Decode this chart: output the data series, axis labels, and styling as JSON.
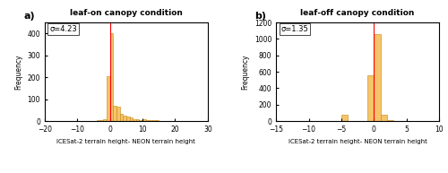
{
  "panel_a": {
    "title": "leaf-on canopy condition",
    "label": "a)",
    "sigma_text": "σ=4.23",
    "xlabel": "ICESat-2 terrain height- NEON terrain height",
    "ylabel": "Frequency",
    "xlim": [
      -20,
      30
    ],
    "ylim": [
      0,
      450
    ],
    "yticks": [
      0,
      100,
      200,
      300,
      400
    ],
    "xticks": [
      -20,
      -10,
      0,
      10,
      20,
      30
    ],
    "vline": 0,
    "bar_color": "#F5C46B",
    "bar_edge_color": "#C8860A",
    "bin_left": [
      -20,
      -19,
      -18,
      -17,
      -16,
      -15,
      -14,
      -13,
      -12,
      -11,
      -10,
      -9,
      -8,
      -7,
      -6,
      -5,
      -4,
      -3,
      -2,
      -1,
      0,
      1,
      2,
      3,
      4,
      5,
      6,
      7,
      8,
      9,
      10,
      11,
      12,
      13,
      14,
      15,
      16,
      17,
      18,
      19,
      20,
      21,
      22,
      23,
      24,
      25,
      26,
      27,
      28,
      29
    ],
    "bin_heights": [
      0,
      0,
      0,
      0,
      0,
      0,
      0,
      0,
      0,
      0,
      1,
      0,
      0,
      0,
      0,
      2,
      3,
      5,
      10,
      205,
      400,
      70,
      65,
      35,
      25,
      20,
      15,
      10,
      8,
      5,
      8,
      5,
      4,
      3,
      3,
      2,
      2,
      2,
      1,
      1,
      1,
      1,
      1,
      0,
      0,
      0,
      0,
      0,
      0,
      0
    ],
    "bin_width": 1
  },
  "panel_b": {
    "title": "leaf-off canopy condition",
    "label": "b)",
    "sigma_text": "σ=1.35",
    "xlabel": "ICESat-2 terrain height- NEON terrain height",
    "ylabel": "Frequency",
    "xlim": [
      -15,
      10
    ],
    "ylim": [
      0,
      1200
    ],
    "yticks": [
      0,
      200,
      400,
      600,
      800,
      1000,
      1200
    ],
    "xticks": [
      -15,
      -10,
      -5,
      0,
      5,
      10
    ],
    "vline": 0,
    "bar_color": "#F5C46B",
    "bar_edge_color": "#C8860A",
    "bin_left": [
      -15,
      -14,
      -13,
      -12,
      -11,
      -10,
      -9,
      -8,
      -7,
      -6,
      -5,
      -4,
      -3,
      -2,
      -1,
      0,
      1,
      2,
      3,
      4,
      5,
      6,
      7,
      8,
      9
    ],
    "bin_heights": [
      0,
      0,
      0,
      0,
      0,
      2,
      0,
      0,
      5,
      0,
      80,
      5,
      3,
      2,
      560,
      1060,
      80,
      10,
      5,
      3,
      2,
      1,
      1,
      0,
      0
    ],
    "bin_width": 1
  }
}
